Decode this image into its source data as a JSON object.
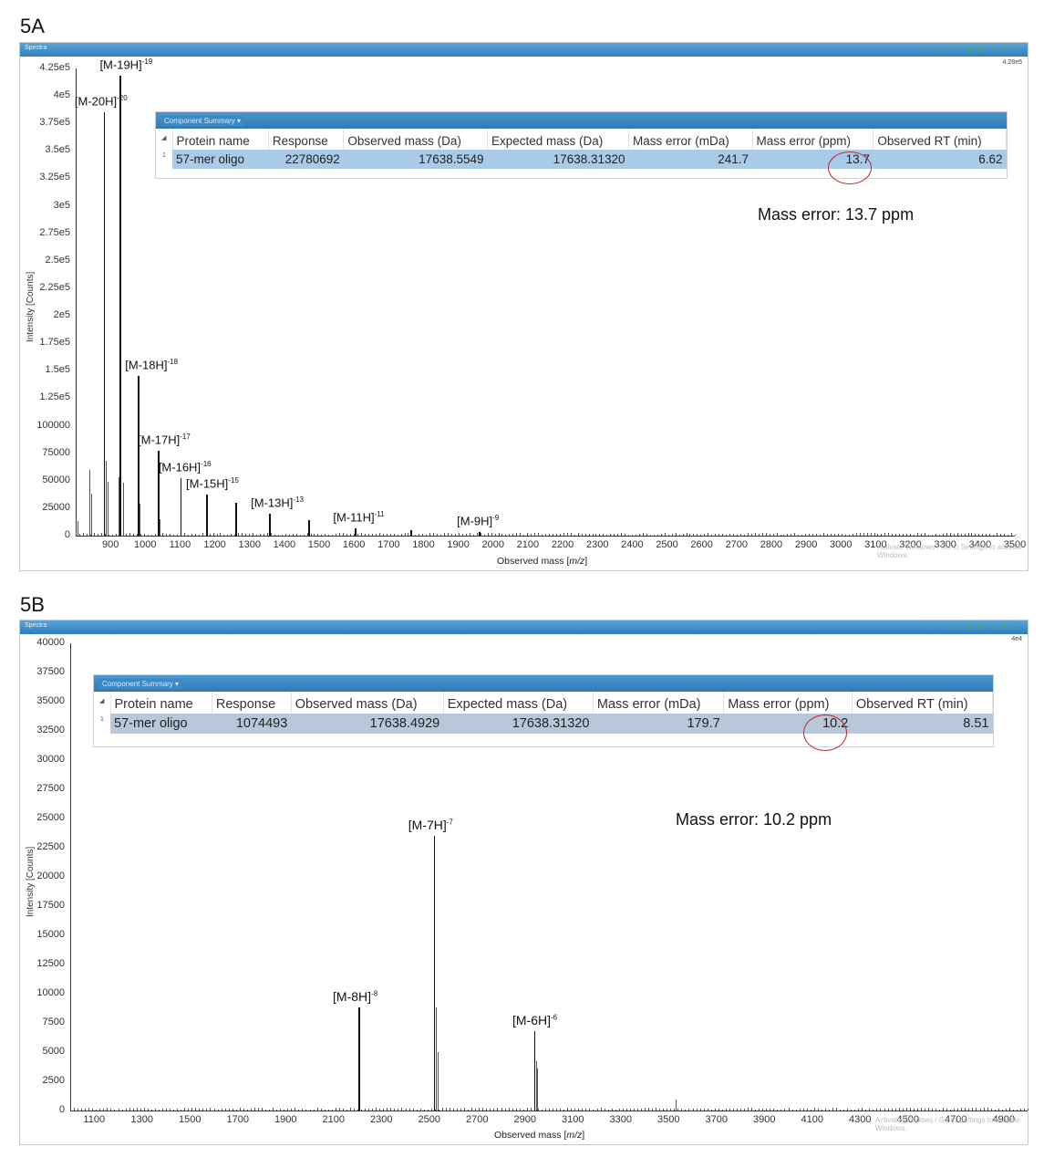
{
  "figures": [
    {
      "label": "5A",
      "window_title": "Spectra",
      "scale_indicator": "4.28e5",
      "toolbar_icons": [
        "zoom-icon",
        "copy-icon",
        "fit-icon",
        "export-icon",
        "chart-type-icon",
        "dropdown-icon",
        "pan-icon",
        "restore-icon"
      ],
      "component_summary": {
        "title": "Component Summary ▾",
        "columns": [
          "Protein name",
          "Response",
          "Observed mass (Da)",
          "Expected mass (Da)",
          "Mass error (mDa)",
          "Mass error (ppm)",
          "Observed RT (min)"
        ],
        "rows": [
          {
            "index": "1",
            "protein_name": "57-mer oligo",
            "response": "22780692",
            "observed_mass": "17638.5549",
            "expected_mass": "17638.31320",
            "mass_error_mda": "241.7",
            "mass_error_ppm": "13.7",
            "observed_rt": "6.62"
          }
        ]
      },
      "annotation": "Mass error: 13.7 ppm",
      "watermark": "Activate Windows / Go to Settings to activate Windows."
    },
    {
      "label": "5B",
      "window_title": "Spectra",
      "scale_indicator": "4e4",
      "toolbar_icons": [
        "zoom-icon",
        "copy-icon",
        "fit-icon",
        "export-icon",
        "chart-type-icon",
        "dropdown-icon",
        "pan-icon",
        "restore-icon"
      ],
      "component_summary": {
        "title": "Component Summary ▾",
        "columns": [
          "Protein name",
          "Response",
          "Observed mass (Da)",
          "Expected mass (Da)",
          "Mass error (mDa)",
          "Mass error (ppm)",
          "Observed RT (min)"
        ],
        "rows": [
          {
            "index": "1",
            "protein_name": "57-mer oligo",
            "response": "1074493",
            "observed_mass": "17638.4929",
            "expected_mass": "17638.31320",
            "mass_error_mda": "179.7",
            "mass_error_ppm": "10.2",
            "observed_rt": "8.51"
          }
        ]
      },
      "annotation": "Mass error: 10.2 ppm",
      "watermark": "Activate Windows / Go to Settings to activate Windows."
    }
  ],
  "chart_data": [
    {
      "type": "bar",
      "title": "5A",
      "xlabel": "Observed mass [m/z]",
      "ylabel": "Intensity [Counts]",
      "xlim": [
        800,
        3500
      ],
      "ylim": [
        0,
        425000
      ],
      "x_ticks": [
        "900",
        "1000",
        "1100",
        "1200",
        "1300",
        "1400",
        "1500",
        "1600",
        "1700",
        "1800",
        "1900",
        "2000",
        "2100",
        "2200",
        "2300",
        "2400",
        "2500",
        "2600",
        "2700",
        "2800",
        "2900",
        "3000",
        "3100",
        "3200",
        "3300",
        "3400",
        "3500"
      ],
      "y_ticks": [
        "0",
        "25000",
        "50000",
        "75000",
        "100000",
        "1.25e5",
        "1.5e5",
        "1.75e5",
        "2e5",
        "2.25e5",
        "2.5e5",
        "2.75e5",
        "3e5",
        "3.25e5",
        "3.5e5",
        "3.75e5",
        "4e5",
        "4.25e5"
      ],
      "peaks": [
        {
          "label": "[M-20H]-20",
          "ion": "[M-20H]",
          "charge": "-20",
          "mz": 881,
          "intensity": 385000
        },
        {
          "label": "[M-19H]-19",
          "ion": "[M-19H]",
          "charge": "-19",
          "mz": 927,
          "intensity": 418000
        },
        {
          "label": "[M-18H]-18",
          "ion": "[M-18H]",
          "charge": "-18",
          "mz": 979,
          "intensity": 145000
        },
        {
          "label": "[M-17H]-17",
          "ion": "[M-17H]",
          "charge": "-17",
          "mz": 1036,
          "intensity": 77000
        },
        {
          "label": "[M-16H]-16",
          "ion": "[M-16H]",
          "charge": "-16",
          "mz": 1101,
          "intensity": 52000
        },
        {
          "label": "[M-15H]-15",
          "ion": "[M-15H]",
          "charge": "-15",
          "mz": 1175,
          "intensity": 37000
        },
        {
          "label": "",
          "ion": "",
          "charge": "",
          "mz": 1259,
          "intensity": 30000
        },
        {
          "label": "[M-13H]-13",
          "ion": "[M-13H]",
          "charge": "-13",
          "mz": 1356,
          "intensity": 20000
        },
        {
          "label": "",
          "ion": "",
          "charge": "",
          "mz": 1469,
          "intensity": 14000
        },
        {
          "label": "[M-11H]-11",
          "ion": "[M-11H]",
          "charge": "-11",
          "mz": 1603,
          "intensity": 7000
        },
        {
          "label": "",
          "ion": "",
          "charge": "",
          "mz": 1763,
          "intensity": 5000
        },
        {
          "label": "[M-9H]-9",
          "ion": "[M-9H]",
          "charge": "-9",
          "mz": 1959,
          "intensity": 3000
        }
      ],
      "minor_peaks": [
        {
          "mz": 840,
          "intensity": 60000
        },
        {
          "mz": 845,
          "intensity": 38000
        },
        {
          "mz": 887,
          "intensity": 68000
        },
        {
          "mz": 893,
          "intensity": 49000
        },
        {
          "mz": 922,
          "intensity": 53000
        },
        {
          "mz": 935,
          "intensity": 48000
        },
        {
          "mz": 984,
          "intensity": 29000
        },
        {
          "mz": 1041,
          "intensity": 15000
        },
        {
          "mz": 805,
          "intensity": 13000
        }
      ]
    },
    {
      "type": "bar",
      "title": "5B",
      "xlabel": "Observed mass [m/z]",
      "ylabel": "Intensity [Counts]",
      "xlim": [
        1000,
        5000
      ],
      "ylim": [
        0,
        40000
      ],
      "x_ticks": [
        "1100",
        "1300",
        "1500",
        "1700",
        "1900",
        "2100",
        "2300",
        "2500",
        "2700",
        "2900",
        "3100",
        "3300",
        "3500",
        "3700",
        "3900",
        "4100",
        "4300",
        "4500",
        "4700",
        "4900"
      ],
      "y_ticks": [
        "0",
        "2500",
        "5000",
        "7500",
        "10000",
        "12500",
        "15000",
        "17500",
        "20000",
        "22500",
        "25000",
        "27500",
        "30000",
        "32500",
        "35000",
        "37500",
        "40000"
      ],
      "peaks": [
        {
          "label": "[M-8H]-8",
          "ion": "[M-8H]",
          "charge": "-8",
          "mz": 2204,
          "intensity": 8800
        },
        {
          "label": "[M-7H]-7",
          "ion": "[M-7H]",
          "charge": "-7",
          "mz": 2519,
          "intensity": 23500
        },
        {
          "label": "[M-6H]-6",
          "ion": "[M-6H]",
          "charge": "-6",
          "mz": 2939,
          "intensity": 6800
        }
      ],
      "minor_peaks": [
        {
          "mz": 2521,
          "intensity": 11300
        },
        {
          "mz": 2527,
          "intensity": 8800
        },
        {
          "mz": 2535,
          "intensity": 5000
        },
        {
          "mz": 2945,
          "intensity": 4200
        },
        {
          "mz": 2951,
          "intensity": 3600
        },
        {
          "mz": 2207,
          "intensity": 2000
        },
        {
          "mz": 3530,
          "intensity": 900
        }
      ]
    }
  ]
}
